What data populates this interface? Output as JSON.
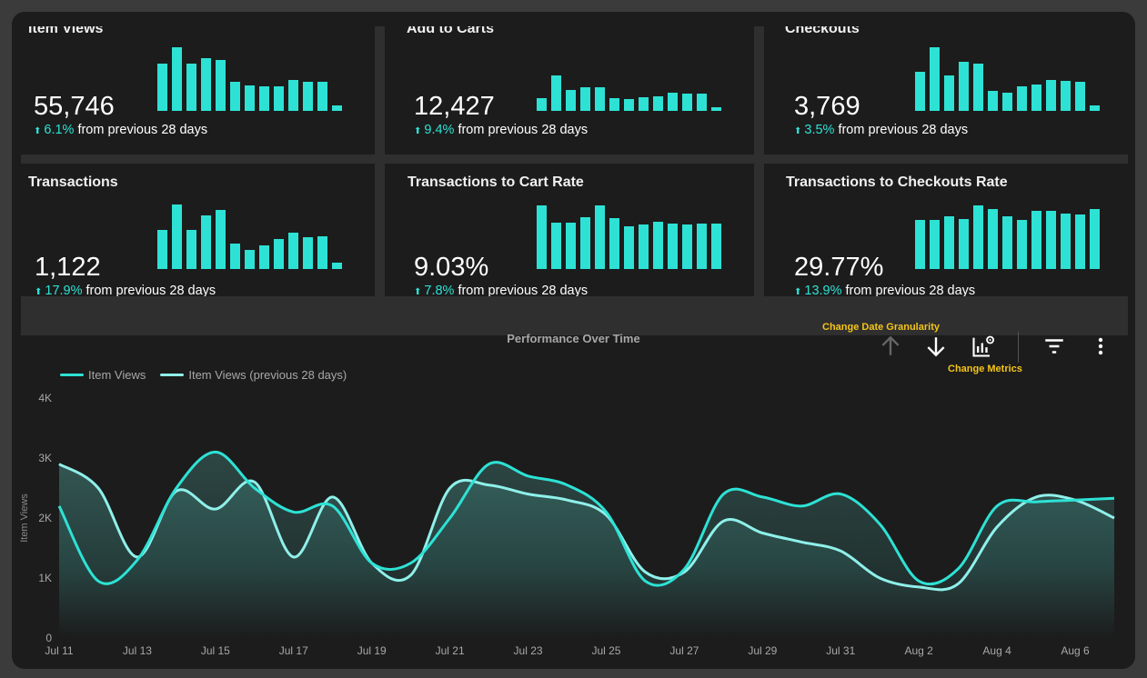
{
  "accent_color": "#2de2d5",
  "secondary_color": "#8ff0ea",
  "kpis": [
    {
      "title": "Item Views",
      "value": "55,746",
      "delta": "6.1%",
      "suffix": "from previous 28 days",
      "bars": [
        0.74,
        1.0,
        0.74,
        0.83,
        0.8,
        0.45,
        0.4,
        0.39,
        0.39,
        0.48,
        0.46,
        0.45,
        0.09
      ]
    },
    {
      "title": "Add to Carts",
      "value": "12,427",
      "delta": "9.4%",
      "suffix": "from previous 28 days",
      "bars": [
        0.2,
        0.55,
        0.33,
        0.37,
        0.37,
        0.2,
        0.19,
        0.21,
        0.23,
        0.28,
        0.27,
        0.27,
        0.05
      ]
    },
    {
      "title": "Checkouts",
      "value": "3,769",
      "delta": "3.5%",
      "suffix": "from previous 28 days",
      "bars": [
        0.61,
        1.0,
        0.56,
        0.77,
        0.74,
        0.32,
        0.29,
        0.39,
        0.41,
        0.49,
        0.47,
        0.46,
        0.09
      ]
    },
    {
      "title": "Transactions",
      "value": "1,122",
      "delta": "17.9%",
      "suffix": "from previous 28 days",
      "bars": [
        0.6,
        1.0,
        0.6,
        0.83,
        0.91,
        0.4,
        0.3,
        0.37,
        0.46,
        0.56,
        0.49,
        0.51,
        0.1
      ]
    },
    {
      "title": "Transactions to Cart Rate",
      "value": "9.03%",
      "delta": "7.8%",
      "suffix": "from previous 28 days",
      "bars": [
        0.99,
        0.72,
        0.72,
        0.8,
        0.99,
        0.79,
        0.66,
        0.69,
        0.73,
        0.71,
        0.69,
        0.71,
        0.71
      ]
    },
    {
      "title": "Transactions to Checkouts Rate",
      "value": "29.77%",
      "delta": "13.9%",
      "suffix": "from previous 28 days",
      "bars": [
        0.76,
        0.76,
        0.82,
        0.78,
        0.99,
        0.93,
        0.82,
        0.76,
        0.9,
        0.9,
        0.86,
        0.84,
        0.93
      ]
    }
  ],
  "toolbar": {
    "change_date_granularity": "Change Date Granularity",
    "change_metrics": "Change Metrics"
  },
  "chart_data": {
    "type": "line",
    "title": "Performance Over Time",
    "xlabel": "",
    "ylabel": "Item Views",
    "ylim": [
      0,
      4000
    ],
    "yticks": [
      0,
      1000,
      2000,
      3000,
      4000
    ],
    "ytick_labels": [
      "0",
      "1K",
      "2K",
      "3K",
      "4K"
    ],
    "x": [
      "Jul 11",
      "Jul 12",
      "Jul 13",
      "Jul 14",
      "Jul 15",
      "Jul 16",
      "Jul 17",
      "Jul 18",
      "Jul 19",
      "Jul 20",
      "Jul 21",
      "Jul 22",
      "Jul 23",
      "Jul 24",
      "Jul 25",
      "Jul 26",
      "Jul 27",
      "Jul 28",
      "Jul 29",
      "Jul 30",
      "Jul 31",
      "Aug 1",
      "Aug 2",
      "Aug 3",
      "Aug 4",
      "Aug 5",
      "Aug 6",
      "Aug 7"
    ],
    "xtick_labels": [
      "Jul 11",
      "Jul 13",
      "Jul 15",
      "Jul 17",
      "Jul 19",
      "Jul 21",
      "Jul 23",
      "Jul 25",
      "Jul 27",
      "Jul 29",
      "Jul 31",
      "Aug 2",
      "Aug 4",
      "Aug 6"
    ],
    "legend_position": "top-left",
    "series": [
      {
        "name": "Item Views",
        "color": "#2de2d5",
        "values": [
          2200,
          950,
          1300,
          2500,
          3100,
          2500,
          2100,
          2200,
          1250,
          1250,
          2000,
          2900,
          2700,
          2550,
          2100,
          950,
          1150,
          2400,
          2350,
          2200,
          2400,
          1900,
          950,
          1150,
          2200,
          2270,
          2300,
          2330
        ]
      },
      {
        "name": "Item Views (previous 28 days)",
        "color": "#8ff0ea",
        "values": [
          2900,
          2500,
          1350,
          2450,
          2150,
          2600,
          1350,
          2350,
          1250,
          1050,
          2500,
          2550,
          2400,
          2300,
          2050,
          1100,
          1100,
          1950,
          1750,
          1600,
          1450,
          1000,
          850,
          900,
          1850,
          2350,
          2300,
          2000
        ]
      }
    ]
  }
}
